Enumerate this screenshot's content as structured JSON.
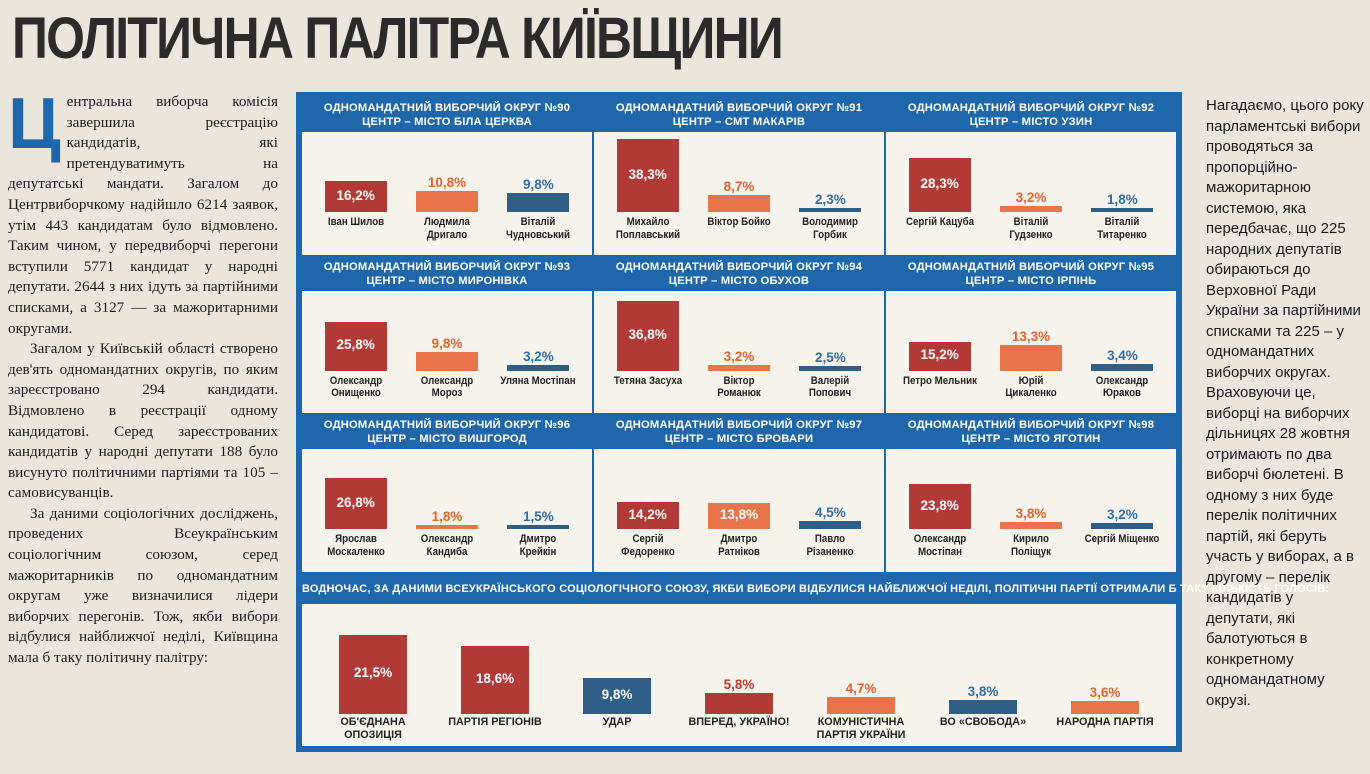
{
  "title": "ПОЛІТИЧНА ПАЛІТРА КИЇВЩИНИ",
  "article": {
    "dropcap": "Ц",
    "p1": "ентральна виборча комісія завершила реєстрацію кандидатів, які претендуватимуть на депутатські мандати. Загалом до Центрвиборчкому надійшло 6214 заявок, утім 443 кандидатам було відмовлено. Таким чином, у передвиборчі перегони вступили 5771 кандидат у народні депутати. 2644 з них ідуть за партійними списками, а 3127 — за мажоритарними округами.",
    "p2": "Загалом у Київській області створено дев'ять одномандатних округів, по яким зареєстровано 294 кандидати. Відмовлено в реєстрації одному кандидатові. Серед зареєстрованих кандидатів у народні депутати 188 було висунуто політичними партіями та 105 – самовисуванців.",
    "p3": "За даними соціологічних досліджень, проведених Всеукраїнським соціологічним союзом, серед мажоритарників по одномандатним округам уже визначилися лідери виборчих перегонів. Тож, якби вибори відбулися найближчої неділі, Київщина мала б таку політичну палітру:"
  },
  "sidebar_text": "Нагадаємо, цього року парламентські вибори проводяться за пропорційно-мажоритарною системою, яка передбачає, що 225 народних депутатів обираються до Верховної Ради України за партійними списками та 225 – у одномандатних виборчих округах. Враховуючи це, виборці на виборчих дільницях 28 жовтня отримають по два виборчі бюлетені. В одному з них буде перелік політичних партій, які беруть участь у виборах, а в другому – перелік кандидатів у депутати, які балотуються в конкретному одномандатному окрузі.",
  "colors": {
    "accent": "#1f67ab",
    "first": "#b23a36",
    "second": "#e8744a",
    "third": "#2f5e87",
    "panel": "#f6f3ec"
  },
  "chart_data": [
    {
      "type": "bar",
      "line1": "ОДНОМАНДАТНИЙ ВИБОРЧИЙ ОКРУГ №90",
      "line2": "ЦЕНТР – МІСТО БІЛА ЦЕРКВА",
      "categories": [
        "Іван Шилов",
        "Людмила Дригало",
        "Віталій Чудновський"
      ],
      "values": [
        16.2,
        10.8,
        9.8
      ],
      "labels": [
        "16,2%",
        "10,8%",
        "9,8%"
      ],
      "ylim": [
        0,
        40
      ]
    },
    {
      "type": "bar",
      "line1": "ОДНОМАНДАТНИЙ ВИБОРЧИЙ ОКРУГ №91",
      "line2": "ЦЕНТР – СМТ МАКАРІВ",
      "categories": [
        "Михайло Поплавський",
        "Віктор Бойко",
        "Володимир Горбик"
      ],
      "values": [
        38.3,
        8.7,
        2.3
      ],
      "labels": [
        "38,3%",
        "8,7%",
        "2,3%"
      ],
      "ylim": [
        0,
        40
      ]
    },
    {
      "type": "bar",
      "line1": "ОДНОМАНДАТНИЙ ВИБОРЧИЙ ОКРУГ №92",
      "line2": "ЦЕНТР – МІСТО УЗИН",
      "categories": [
        "Сергій Кацуба",
        "Віталій Гудзенко",
        "Віталій Титаренко"
      ],
      "values": [
        28.3,
        3.2,
        1.8
      ],
      "labels": [
        "28,3%",
        "3,2%",
        "1,8%"
      ],
      "ylim": [
        0,
        40
      ]
    },
    {
      "type": "bar",
      "line1": "ОДНОМАНДАТНИЙ ВИБОРЧИЙ ОКРУГ №93",
      "line2": "ЦЕНТР – МІСТО МИРОНІВКА",
      "categories": [
        "Олександр Онищенко",
        "Олександр Мороз",
        "Уляна Мостіпан"
      ],
      "values": [
        25.8,
        9.8,
        3.2
      ],
      "labels": [
        "25,8%",
        "9,8%",
        "3,2%"
      ],
      "ylim": [
        0,
        40
      ]
    },
    {
      "type": "bar",
      "line1": "ОДНОМАНДАТНИЙ ВИБОРЧИЙ ОКРУГ №94",
      "line2": "ЦЕНТР – МІСТО ОБУХОВ",
      "categories": [
        "Тетяна Засуха",
        "Віктор Романюк",
        "Валерій Попович"
      ],
      "values": [
        36.8,
        3.2,
        2.5
      ],
      "labels": [
        "36,8%",
        "3,2%",
        "2,5%"
      ],
      "ylim": [
        0,
        40
      ]
    },
    {
      "type": "bar",
      "line1": "ОДНОМАНДАТНИЙ ВИБОРЧИЙ ОКРУГ №95",
      "line2": "ЦЕНТР – МІСТО ІРПІНЬ",
      "categories": [
        "Петро Мельник",
        "Юрій Цикаленко",
        "Олександр Юраков"
      ],
      "values": [
        15.2,
        13.3,
        3.4
      ],
      "labels": [
        "15,2%",
        "13,3%",
        "3,4%"
      ],
      "ylim": [
        0,
        40
      ]
    },
    {
      "type": "bar",
      "line1": "ОДНОМАНДАТНИЙ ВИБОРЧИЙ ОКРУГ №96",
      "line2": "ЦЕНТР – МІСТО ВИШГОРОД",
      "categories": [
        "Ярослав Москаленко",
        "Олександр Кандиба",
        "Дмитро Крейкін"
      ],
      "values": [
        26.8,
        1.8,
        1.5
      ],
      "labels": [
        "26,8%",
        "1,8%",
        "1,5%"
      ],
      "ylim": [
        0,
        40
      ]
    },
    {
      "type": "bar",
      "line1": "ОДНОМАНДАТНИЙ ВИБОРЧИЙ ОКРУГ №97",
      "line2": "ЦЕНТР – МІСТО БРОВАРИ",
      "categories": [
        "Сергій Федоренко",
        "Дмитро Ратніков",
        "Павло Різаненко"
      ],
      "values": [
        14.2,
        13.8,
        4.5
      ],
      "labels": [
        "14,2%",
        "13,8%",
        "4,5%"
      ],
      "ylim": [
        0,
        40
      ]
    },
    {
      "type": "bar",
      "line1": "ОДНОМАНДАТНИЙ ВИБОРЧИЙ ОКРУГ №98",
      "line2": "ЦЕНТР – МІСТО ЯГОТИН",
      "categories": [
        "Олександр Мостіпан",
        "Кирило Поліщук",
        "Сергій Міщенко"
      ],
      "values": [
        23.8,
        3.8,
        3.2
      ],
      "labels": [
        "23,8%",
        "3,8%",
        "3,2%"
      ],
      "ylim": [
        0,
        40
      ]
    },
    {
      "type": "bar",
      "title": "ВОДНОЧАС, ЗА ДАНИМИ ВСЕУКРАЇНСЬКОГО СОЦІОЛОГІЧНОГО СОЮЗУ, ЯКБИ ВИБОРИ ВІДБУЛИСЯ НАЙБЛИЖЧОЇ НЕДІЛІ, ПОЛІТИЧНІ ПАРТІЇ ОТРИМАЛИ Б ТАКУ КІЛЬКІСТЬ ГОЛОСІВ:",
      "categories": [
        "ОБ'ЄДНАНА ОПОЗИЦІЯ",
        "ПАРТІЯ РЕГІОНІВ",
        "УДАР",
        "ВПЕРЕД, УКРАЇНО!",
        "КОМУНІСТИЧНА ПАРТІЯ УКРАЇНИ",
        "ВО «СВОБОДА»",
        "НАРОДНА ПАРТІЯ"
      ],
      "values": [
        21.5,
        18.6,
        9.8,
        5.8,
        4.7,
        3.8,
        3.6
      ],
      "labels": [
        "21,5%",
        "18,6%",
        "9,8%",
        "5,8%",
        "4,7%",
        "3,8%",
        "3,6%"
      ],
      "ylim": [
        0,
        24
      ]
    }
  ]
}
